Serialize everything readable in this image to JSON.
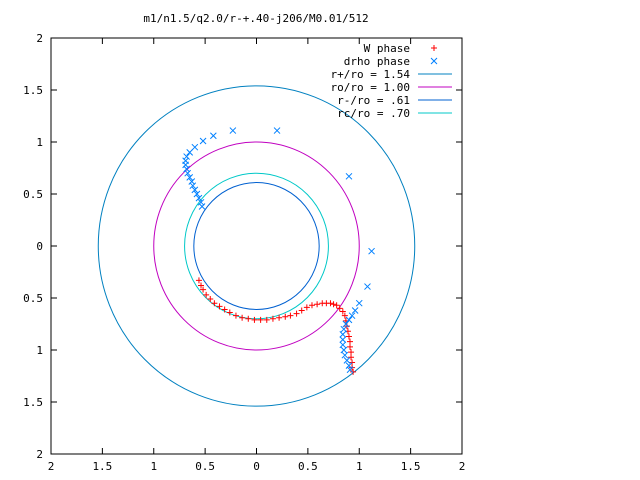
{
  "chart_data": {
    "type": "scatter",
    "title": "m1/n1.5/q2.0/r-+.40-j206/M0.01/512",
    "xlabel": "",
    "ylabel": "",
    "xlim": [
      -2,
      2
    ],
    "ylim": [
      -2,
      2
    ],
    "x_tick_labels": [
      "2",
      "1.5",
      "1",
      "0.5",
      "0",
      "0.5",
      "1",
      "1.5",
      "2"
    ],
    "y_tick_labels": [
      "2",
      "1.5",
      "1",
      "0.5",
      "0",
      "0.5",
      "1",
      "1.5",
      "2"
    ],
    "grid": false,
    "legend_position": "top-right",
    "series": [
      {
        "name": "W phase",
        "kind": "points",
        "marker": "+",
        "color": "#ff0000",
        "points": [
          [
            -0.56,
            -0.33
          ],
          [
            -0.54,
            -0.38
          ],
          [
            -0.52,
            -0.42
          ],
          [
            -0.49,
            -0.47
          ],
          [
            -0.45,
            -0.51
          ],
          [
            -0.41,
            -0.55
          ],
          [
            -0.36,
            -0.58
          ],
          [
            -0.31,
            -0.61
          ],
          [
            -0.26,
            -0.64
          ],
          [
            -0.2,
            -0.67
          ],
          [
            -0.14,
            -0.69
          ],
          [
            -0.08,
            -0.7
          ],
          [
            -0.02,
            -0.71
          ],
          [
            0.04,
            -0.71
          ],
          [
            0.1,
            -0.71
          ],
          [
            0.16,
            -0.7
          ],
          [
            0.22,
            -0.69
          ],
          [
            0.28,
            -0.68
          ],
          [
            0.33,
            -0.67
          ],
          [
            0.39,
            -0.65
          ],
          [
            0.44,
            -0.62
          ],
          [
            0.49,
            -0.59
          ],
          [
            0.54,
            -0.57
          ],
          [
            0.59,
            -0.56
          ],
          [
            0.64,
            -0.55
          ],
          [
            0.68,
            -0.55
          ],
          [
            0.72,
            -0.55
          ],
          [
            0.75,
            -0.56
          ],
          [
            0.78,
            -0.57
          ],
          [
            0.81,
            -0.6
          ],
          [
            0.84,
            -0.63
          ],
          [
            0.86,
            -0.67
          ],
          [
            0.87,
            -0.72
          ],
          [
            0.88,
            -0.77
          ],
          [
            0.89,
            -0.82
          ],
          [
            0.9,
            -0.87
          ],
          [
            0.91,
            -0.92
          ],
          [
            0.91,
            -0.97
          ],
          [
            0.92,
            -1.02
          ],
          [
            0.92,
            -1.07
          ],
          [
            0.93,
            -1.12
          ],
          [
            0.93,
            -1.17
          ],
          [
            0.94,
            -1.21
          ]
        ]
      },
      {
        "name": "drho phase",
        "kind": "points",
        "marker": "x",
        "color": "#0080ff",
        "points": [
          [
            -0.53,
            0.38
          ],
          [
            -0.54,
            0.42
          ],
          [
            -0.56,
            0.46
          ],
          [
            -0.58,
            0.5
          ],
          [
            -0.6,
            0.54
          ],
          [
            -0.62,
            0.58
          ],
          [
            -0.63,
            0.62
          ],
          [
            -0.65,
            0.66
          ],
          [
            -0.67,
            0.7
          ],
          [
            -0.68,
            0.74
          ],
          [
            -0.69,
            0.78
          ],
          [
            -0.69,
            0.82
          ],
          [
            -0.68,
            0.86
          ],
          [
            -0.65,
            0.9
          ],
          [
            -0.6,
            0.95
          ],
          [
            -0.52,
            1.01
          ],
          [
            -0.42,
            1.06
          ],
          [
            -0.23,
            1.11
          ],
          [
            0.2,
            1.11
          ],
          [
            0.9,
            0.67
          ],
          [
            1.12,
            -0.05
          ],
          [
            1.08,
            -0.39
          ],
          [
            1.0,
            -0.55
          ],
          [
            0.96,
            -0.62
          ],
          [
            0.93,
            -0.67
          ],
          [
            0.9,
            -0.71
          ],
          [
            0.87,
            -0.75
          ],
          [
            0.85,
            -0.8
          ],
          [
            0.84,
            -0.85
          ],
          [
            0.84,
            -0.9
          ],
          [
            0.84,
            -0.95
          ],
          [
            0.85,
            -1.0
          ],
          [
            0.86,
            -1.05
          ],
          [
            0.88,
            -1.1
          ],
          [
            0.9,
            -1.15
          ],
          [
            0.91,
            -1.19
          ]
        ]
      },
      {
        "name": "r+/ro = 1.54",
        "kind": "circle",
        "radius": 1.54,
        "color": "#0080c0"
      },
      {
        "name": "ro/ro = 1.00",
        "kind": "circle",
        "radius": 1.0,
        "color": "#c000c0"
      },
      {
        "name": "r-/ro = .61",
        "kind": "circle",
        "radius": 0.61,
        "color": "#0060d0"
      },
      {
        "name": "rc/ro = .70",
        "kind": "circle",
        "radius": 0.7,
        "color": "#00c8c8"
      }
    ]
  }
}
